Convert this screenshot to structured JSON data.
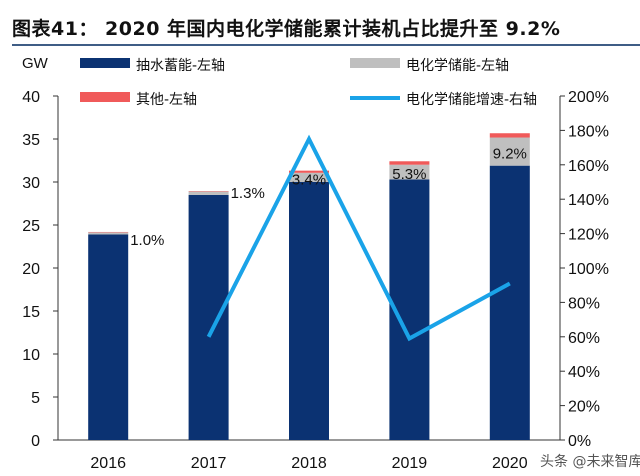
{
  "chart_data": {
    "type": "bar",
    "title": "图表41：  2020 年国内电化学储能累计装机占比提升至 9.2%",
    "left_unit": "GW",
    "categories": [
      "2016",
      "2017",
      "2018",
      "2019",
      "2020"
    ],
    "series": [
      {
        "name": "抽水蓄能-左轴",
        "type": "stacked-bar",
        "axis": "left",
        "color": "#0b3272",
        "values": [
          23.9,
          28.5,
          30.0,
          30.3,
          31.9
        ]
      },
      {
        "name": "电化学储能-左轴",
        "type": "stacked-bar",
        "axis": "left",
        "color": "#bfbfbf",
        "values": [
          0.24,
          0.39,
          1.07,
          1.71,
          3.27
        ]
      },
      {
        "name": "其他-左轴",
        "type": "stacked-bar",
        "axis": "left",
        "color": "#f05a5a",
        "values": [
          0.05,
          0.05,
          0.25,
          0.4,
          0.5
        ]
      },
      {
        "name": "电化学储能增速-右轴",
        "type": "line",
        "axis": "right",
        "color": "#1aa3e8",
        "values": [
          null,
          60,
          175,
          59,
          91
        ]
      }
    ],
    "data_labels": [
      "1.0%",
      "1.3%",
      "3.4%",
      "5.3%",
      "9.2%"
    ],
    "left_axis": {
      "min": 0,
      "max": 40,
      "ticks": [
        "0",
        "5",
        "10",
        "15",
        "20",
        "25",
        "30",
        "35",
        "40"
      ]
    },
    "right_axis": {
      "min": 0,
      "max": 200,
      "ticks": [
        "0%",
        "20%",
        "40%",
        "60%",
        "80%",
        "100%",
        "120%",
        "140%",
        "160%",
        "180%",
        "200%"
      ]
    },
    "grid": false,
    "legend_placement": "top"
  },
  "watermark": "头条 @未来智库"
}
